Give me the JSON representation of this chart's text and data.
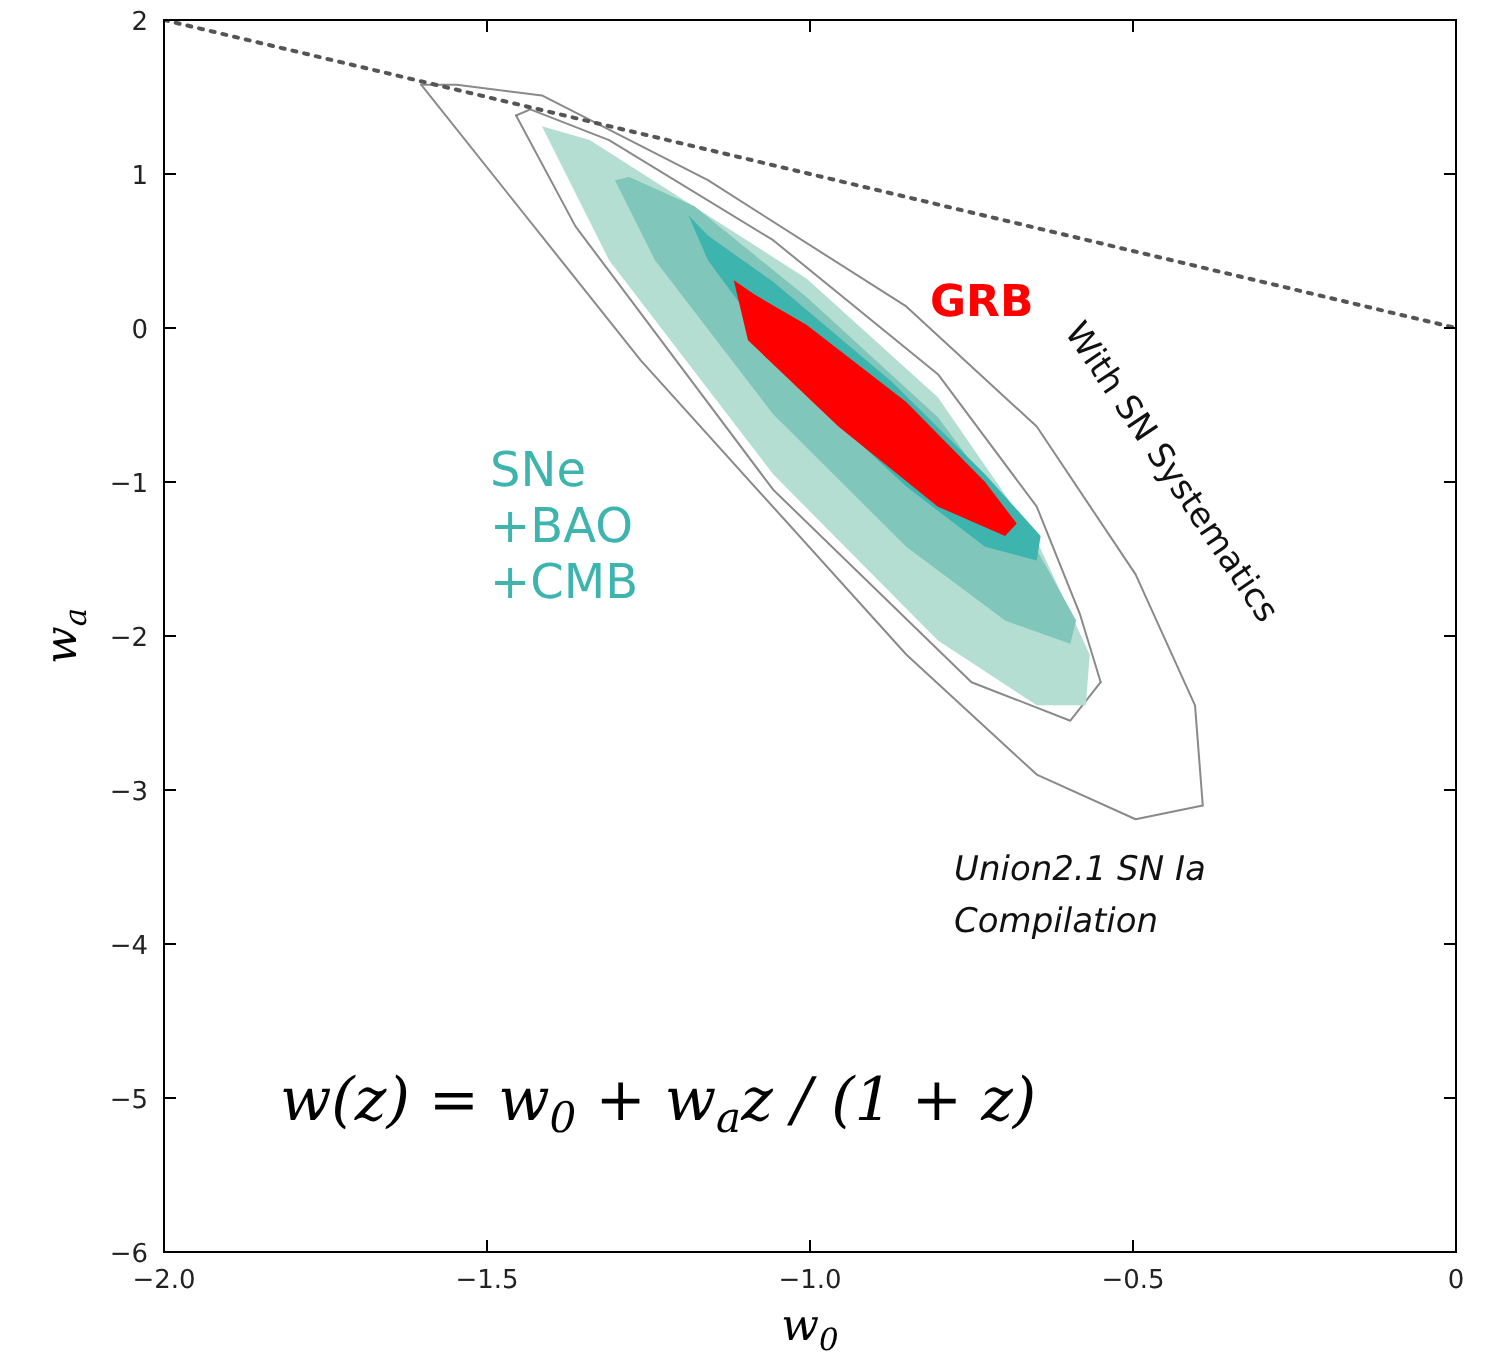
{
  "chart_data": {
    "type": "line",
    "xlabel": "w$_{0}$",
    "ylabel": "w$_{a}$",
    "xlim": [
      -2.0,
      0.0
    ],
    "ylim": [
      -6,
      2
    ],
    "xticks": [
      {
        "value": -2.0,
        "label": "−2.0"
      },
      {
        "value": -1.5,
        "label": "−1.5"
      },
      {
        "value": -1.0,
        "label": "−1.0"
      },
      {
        "value": -0.5,
        "label": "−0.5"
      },
      0.0
    ],
    "yticks": [
      {
        "value": -6,
        "label": "−6"
      },
      {
        "value": -5,
        "label": "−5"
      },
      {
        "value": -4,
        "label": "−4"
      },
      {
        "value": -3,
        "label": "−3"
      },
      {
        "value": -2,
        "label": "−2"
      },
      {
        "value": -1,
        "label": "−1"
      },
      0,
      1,
      2
    ],
    "grid": false,
    "series": [
      {
        "name": "Union2.1 SN Ia\nCompilation",
        "color": "#8a8a8a",
        "line_style": "solid",
        "x": [
          -1.602,
          -1.262,
          -0.851,
          -0.649,
          -0.496,
          -0.392
        ],
        "values": [
          1.58,
          -0.21,
          -2.12,
          -2.9,
          -3.19,
          -3.1
        ]
      },
      {
        "name": "With SN Systematics",
        "color": "#8a8a8a",
        "line_style": "solid",
        "x": [
          -1.602,
          -1.547,
          -1.415,
          -1.158,
          -0.851,
          -0.649,
          -0.496,
          -0.404,
          -0.392
        ],
        "values": [
          1.58,
          1.58,
          1.51,
          0.96,
          0.14,
          -0.64,
          -1.6,
          -2.45,
          -3.1
        ]
      },
      {
        "color": "#8a8a8a",
        "line_style": "solid",
        "x": [
          -1.455,
          -1.363,
          -1.057,
          -0.75,
          -0.597,
          -0.55
        ],
        "values": [
          1.38,
          0.66,
          -1.05,
          -2.3,
          -2.55,
          -2.3
        ]
      },
      {
        "color": "#8a8a8a",
        "line_style": "solid",
        "x": [
          -1.455,
          -1.433,
          -1.311,
          -1.057,
          -0.802,
          -0.649,
          -0.582,
          -0.55
        ],
        "values": [
          1.38,
          1.42,
          1.22,
          0.57,
          -0.3,
          -1.16,
          -1.86,
          -2.3
        ]
      },
      {
        "type": "area",
        "color": "#b5ded2",
        "x": [
          -1.415,
          -1.311,
          -1.057,
          -0.802,
          -0.649,
          -0.573,
          -0.567,
          -0.649,
          -0.802,
          -1.005,
          -1.21,
          -1.341
        ],
        "values": [
          1.31,
          0.44,
          -0.95,
          -2.03,
          -2.45,
          -2.45,
          -2.12,
          -1.38,
          -0.45,
          0.32,
          0.87,
          1.22
        ]
      },
      {
        "type": "area",
        "color": "#80c6ba",
        "x": [
          -1.302,
          -1.24,
          -1.057,
          -0.851,
          -0.698,
          -0.597,
          -0.588,
          -0.649,
          -0.802,
          -1.005,
          -1.179,
          -1.28
        ],
        "values": [
          0.96,
          0.44,
          -0.56,
          -1.42,
          -1.9,
          -2.05,
          -1.9,
          -1.44,
          -0.58,
          0.2,
          0.79,
          0.98
        ]
      },
      {
        "name": "SNe\n+BAO\n+CMB",
        "type": "area",
        "color": "#3db5ae",
        "x": [
          -1.188,
          -1.158,
          -1.005,
          -0.851,
          -0.729,
          -0.649,
          -0.643,
          -0.729,
          -0.873,
          -1.057,
          -1.158
        ],
        "values": [
          0.73,
          0.44,
          -0.43,
          -1.03,
          -1.42,
          -1.51,
          -1.35,
          -0.95,
          -0.35,
          0.3,
          0.6
        ]
      },
      {
        "name": "GRB",
        "type": "area",
        "color": "#ff0000",
        "x": [
          -1.118,
          -1.096,
          -0.956,
          -0.802,
          -0.698,
          -0.68,
          -0.729,
          -0.851,
          -1.005,
          -1.087
        ],
        "values": [
          0.31,
          -0.08,
          -0.64,
          -1.16,
          -1.35,
          -1.27,
          -1.0,
          -0.48,
          0.02,
          0.22
        ]
      },
      {
        "color": "#555555",
        "line_style": "dotted",
        "x": [
          -2.0,
          0.0
        ],
        "values": [
          2.0,
          0.0
        ]
      }
    ],
    "annotations": [
      "w(z) = w$_{0}$ + w$_{a}$z / (1 + z)"
    ]
  }
}
